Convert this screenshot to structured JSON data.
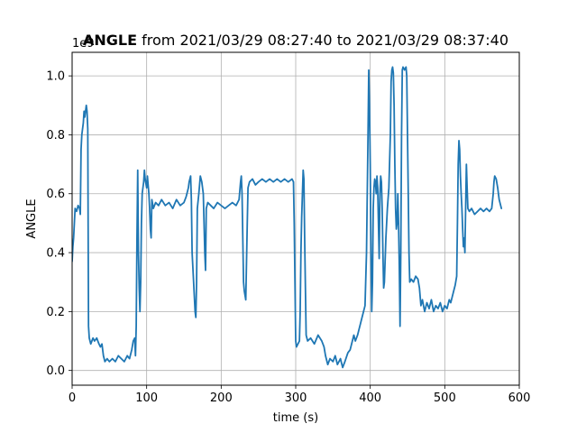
{
  "chart_data": {
    "type": "line",
    "title_bold": "ANGLE",
    "title_rest": " from 2021/03/29 08:27:40 to 2021/03/29 08:37:40",
    "xlabel": "time (s)",
    "ylabel": "ANGLE",
    "y_offset_text": "1e9",
    "xlim": [
      0,
      600
    ],
    "ylim": [
      -0.05,
      1.08
    ],
    "xticks": [
      0,
      100,
      200,
      300,
      400,
      500,
      600
    ],
    "xtick_labels": [
      "0",
      "100",
      "200",
      "300",
      "400",
      "500",
      "600"
    ],
    "yticks": [
      0.0,
      0.2,
      0.4,
      0.6,
      0.8,
      1.0
    ],
    "ytick_labels": [
      "0.0",
      "0.2",
      "0.4",
      "0.6",
      "0.8",
      "1.0"
    ],
    "grid": true,
    "line_color": "#1f77b4",
    "series": [
      {
        "name": "",
        "points": [
          [
            0,
            0.37
          ],
          [
            1,
            0.42
          ],
          [
            2,
            0.45
          ],
          [
            3,
            0.5
          ],
          [
            4,
            0.55
          ],
          [
            6,
            0.54
          ],
          [
            8,
            0.56
          ],
          [
            10,
            0.55
          ],
          [
            11,
            0.53
          ],
          [
            12,
            0.75
          ],
          [
            13,
            0.8
          ],
          [
            14,
            0.82
          ],
          [
            15,
            0.84
          ],
          [
            16,
            0.88
          ],
          [
            17,
            0.86
          ],
          [
            19,
            0.9
          ],
          [
            20,
            0.88
          ],
          [
            21,
            0.82
          ],
          [
            22,
            0.15
          ],
          [
            23,
            0.11
          ],
          [
            25,
            0.09
          ],
          [
            28,
            0.11
          ],
          [
            30,
            0.1
          ],
          [
            33,
            0.11
          ],
          [
            36,
            0.09
          ],
          [
            38,
            0.08
          ],
          [
            40,
            0.09
          ],
          [
            42,
            0.05
          ],
          [
            44,
            0.03
          ],
          [
            47,
            0.04
          ],
          [
            50,
            0.03
          ],
          [
            54,
            0.04
          ],
          [
            58,
            0.03
          ],
          [
            62,
            0.05
          ],
          [
            66,
            0.04
          ],
          [
            70,
            0.03
          ],
          [
            74,
            0.05
          ],
          [
            77,
            0.04
          ],
          [
            80,
            0.07
          ],
          [
            82,
            0.1
          ],
          [
            84,
            0.11
          ],
          [
            85,
            0.05
          ],
          [
            86,
            0.15
          ],
          [
            87,
            0.45
          ],
          [
            88,
            0.68
          ],
          [
            89,
            0.4
          ],
          [
            90,
            0.28
          ],
          [
            91,
            0.2
          ],
          [
            92,
            0.3
          ],
          [
            93,
            0.5
          ],
          [
            94,
            0.6
          ],
          [
            96,
            0.64
          ],
          [
            97,
            0.68
          ],
          [
            98,
            0.65
          ],
          [
            100,
            0.62
          ],
          [
            101,
            0.66
          ],
          [
            103,
            0.6
          ],
          [
            104,
            0.55
          ],
          [
            105,
            0.48
          ],
          [
            106,
            0.45
          ],
          [
            107,
            0.58
          ],
          [
            109,
            0.55
          ],
          [
            112,
            0.57
          ],
          [
            116,
            0.56
          ],
          [
            120,
            0.58
          ],
          [
            125,
            0.56
          ],
          [
            130,
            0.57
          ],
          [
            135,
            0.55
          ],
          [
            140,
            0.58
          ],
          [
            145,
            0.56
          ],
          [
            150,
            0.57
          ],
          [
            153,
            0.59
          ],
          [
            155,
            0.61
          ],
          [
            156,
            0.62
          ],
          [
            157,
            0.64
          ],
          [
            158,
            0.65
          ],
          [
            159,
            0.66
          ],
          [
            160,
            0.58
          ],
          [
            161,
            0.4
          ],
          [
            162,
            0.35
          ],
          [
            163,
            0.3
          ],
          [
            164,
            0.25
          ],
          [
            165,
            0.2
          ],
          [
            166,
            0.18
          ],
          [
            167,
            0.3
          ],
          [
            168,
            0.55
          ],
          [
            170,
            0.6
          ],
          [
            172,
            0.66
          ],
          [
            174,
            0.64
          ],
          [
            176,
            0.6
          ],
          [
            177,
            0.5
          ],
          [
            178,
            0.4
          ],
          [
            179,
            0.34
          ],
          [
            180,
            0.55
          ],
          [
            182,
            0.57
          ],
          [
            186,
            0.56
          ],
          [
            190,
            0.55
          ],
          [
            195,
            0.57
          ],
          [
            200,
            0.56
          ],
          [
            205,
            0.55
          ],
          [
            210,
            0.56
          ],
          [
            215,
            0.57
          ],
          [
            220,
            0.56
          ],
          [
            224,
            0.58
          ],
          [
            226,
            0.64
          ],
          [
            227,
            0.66
          ],
          [
            228,
            0.6
          ],
          [
            229,
            0.45
          ],
          [
            230,
            0.3
          ],
          [
            231,
            0.27
          ],
          [
            233,
            0.24
          ],
          [
            235,
            0.5
          ],
          [
            236,
            0.62
          ],
          [
            238,
            0.64
          ],
          [
            242,
            0.65
          ],
          [
            246,
            0.63
          ],
          [
            250,
            0.64
          ],
          [
            255,
            0.65
          ],
          [
            260,
            0.64
          ],
          [
            265,
            0.65
          ],
          [
            270,
            0.64
          ],
          [
            275,
            0.65
          ],
          [
            280,
            0.64
          ],
          [
            285,
            0.65
          ],
          [
            290,
            0.64
          ],
          [
            295,
            0.65
          ],
          [
            297,
            0.64
          ],
          [
            298,
            0.5
          ],
          [
            299,
            0.3
          ],
          [
            300,
            0.1
          ],
          [
            301,
            0.08
          ],
          [
            303,
            0.09
          ],
          [
            305,
            0.1
          ],
          [
            306,
            0.2
          ],
          [
            307,
            0.4
          ],
          [
            308,
            0.52
          ],
          [
            309,
            0.6
          ],
          [
            310,
            0.68
          ],
          [
            311,
            0.65
          ],
          [
            312,
            0.45
          ],
          [
            313,
            0.28
          ],
          [
            314,
            0.12
          ],
          [
            316,
            0.1
          ],
          [
            320,
            0.11
          ],
          [
            325,
            0.09
          ],
          [
            330,
            0.12
          ],
          [
            335,
            0.1
          ],
          [
            338,
            0.08
          ],
          [
            340,
            0.05
          ],
          [
            343,
            0.02
          ],
          [
            346,
            0.04
          ],
          [
            350,
            0.03
          ],
          [
            353,
            0.05
          ],
          [
            356,
            0.02
          ],
          [
            360,
            0.04
          ],
          [
            363,
            0.01
          ],
          [
            366,
            0.03
          ],
          [
            370,
            0.06
          ],
          [
            373,
            0.07
          ],
          [
            376,
            0.1
          ],
          [
            378,
            0.12
          ],
          [
            380,
            0.1
          ],
          [
            383,
            0.12
          ],
          [
            385,
            0.14
          ],
          [
            387,
            0.16
          ],
          [
            389,
            0.18
          ],
          [
            391,
            0.2
          ],
          [
            393,
            0.22
          ],
          [
            395,
            0.4
          ],
          [
            396,
            0.6
          ],
          [
            397,
            0.8
          ],
          [
            398,
            1.02
          ],
          [
            399,
            0.9
          ],
          [
            400,
            0.7
          ],
          [
            401,
            0.4
          ],
          [
            402,
            0.2
          ],
          [
            403,
            0.3
          ],
          [
            404,
            0.55
          ],
          [
            405,
            0.62
          ],
          [
            406,
            0.65
          ],
          [
            407,
            0.64
          ],
          [
            408,
            0.6
          ],
          [
            409,
            0.66
          ],
          [
            410,
            0.62
          ],
          [
            411,
            0.5
          ],
          [
            412,
            0.38
          ],
          [
            413,
            0.6
          ],
          [
            414,
            0.66
          ],
          [
            415,
            0.64
          ],
          [
            416,
            0.55
          ],
          [
            417,
            0.4
          ],
          [
            418,
            0.28
          ],
          [
            419,
            0.3
          ],
          [
            421,
            0.45
          ],
          [
            423,
            0.55
          ],
          [
            425,
            0.62
          ],
          [
            427,
            0.8
          ],
          [
            428,
            0.98
          ],
          [
            429,
            1.02
          ],
          [
            430,
            1.03
          ],
          [
            431,
            1.01
          ],
          [
            432,
            0.9
          ],
          [
            433,
            0.7
          ],
          [
            434,
            0.55
          ],
          [
            435,
            0.48
          ],
          [
            436,
            0.5
          ],
          [
            437,
            0.6
          ],
          [
            438,
            0.5
          ],
          [
            439,
            0.35
          ],
          [
            440,
            0.15
          ],
          [
            441,
            0.4
          ],
          [
            442,
            0.8
          ],
          [
            443,
            1.02
          ],
          [
            444,
            1.03
          ],
          [
            446,
            1.02
          ],
          [
            448,
            1.03
          ],
          [
            449,
            1.0
          ],
          [
            450,
            0.8
          ],
          [
            451,
            0.6
          ],
          [
            452,
            0.4
          ],
          [
            453,
            0.3
          ],
          [
            455,
            0.31
          ],
          [
            458,
            0.3
          ],
          [
            461,
            0.32
          ],
          [
            464,
            0.31
          ],
          [
            466,
            0.28
          ],
          [
            468,
            0.22
          ],
          [
            470,
            0.24
          ],
          [
            473,
            0.2
          ],
          [
            476,
            0.23
          ],
          [
            479,
            0.21
          ],
          [
            482,
            0.24
          ],
          [
            485,
            0.2
          ],
          [
            488,
            0.22
          ],
          [
            491,
            0.21
          ],
          [
            494,
            0.23
          ],
          [
            497,
            0.2
          ],
          [
            500,
            0.22
          ],
          [
            503,
            0.21
          ],
          [
            506,
            0.24
          ],
          [
            508,
            0.23
          ],
          [
            510,
            0.25
          ],
          [
            512,
            0.27
          ],
          [
            514,
            0.29
          ],
          [
            516,
            0.32
          ],
          [
            517,
            0.5
          ],
          [
            518,
            0.7
          ],
          [
            519,
            0.78
          ],
          [
            520,
            0.75
          ],
          [
            521,
            0.66
          ],
          [
            522,
            0.6
          ],
          [
            523,
            0.55
          ],
          [
            524,
            0.48
          ],
          [
            525,
            0.42
          ],
          [
            526,
            0.45
          ],
          [
            527,
            0.4
          ],
          [
            528,
            0.55
          ],
          [
            529,
            0.7
          ],
          [
            530,
            0.62
          ],
          [
            531,
            0.55
          ],
          [
            533,
            0.54
          ],
          [
            536,
            0.55
          ],
          [
            540,
            0.53
          ],
          [
            544,
            0.54
          ],
          [
            548,
            0.55
          ],
          [
            552,
            0.54
          ],
          [
            556,
            0.55
          ],
          [
            560,
            0.54
          ],
          [
            563,
            0.55
          ],
          [
            565,
            0.6
          ],
          [
            566,
            0.64
          ],
          [
            567,
            0.66
          ],
          [
            569,
            0.65
          ],
          [
            571,
            0.62
          ],
          [
            573,
            0.58
          ],
          [
            575,
            0.56
          ],
          [
            576,
            0.55
          ]
        ]
      }
    ]
  }
}
